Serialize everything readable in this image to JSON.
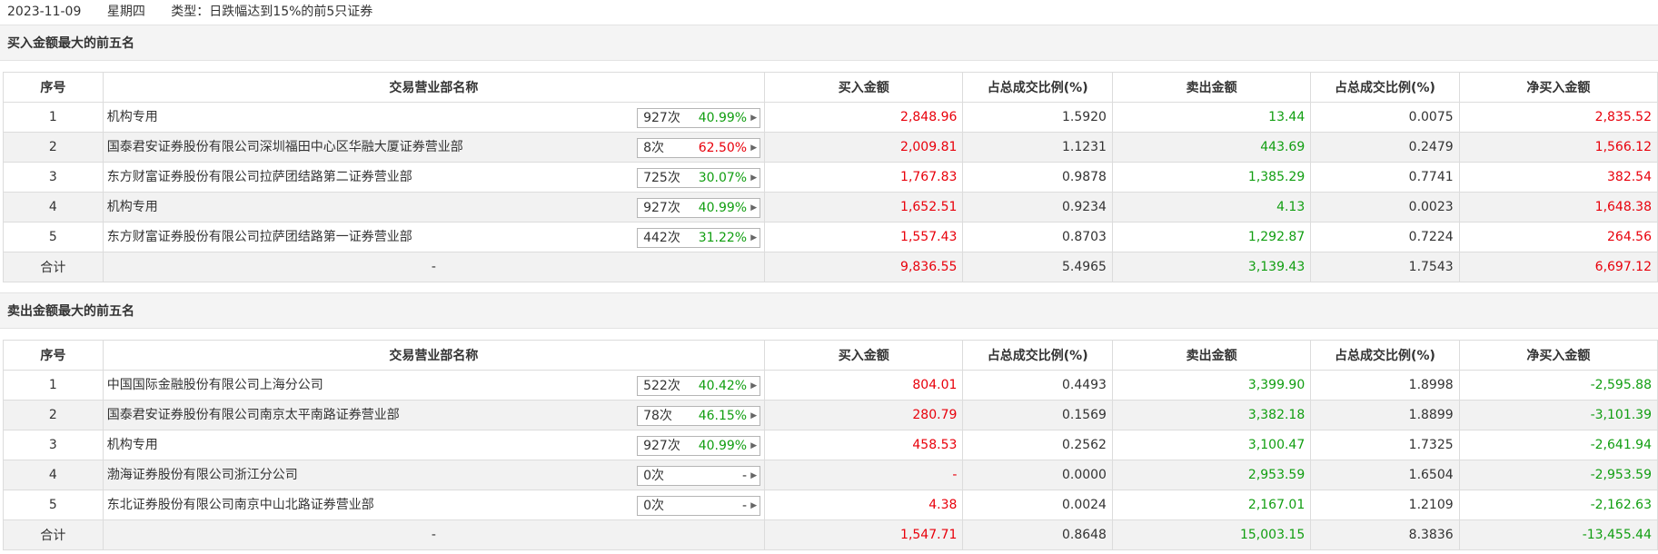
{
  "header": {
    "date": "2023-11-09",
    "weekday": "星期四",
    "type_label": "类型：日跌幅达到15%的前5只证券"
  },
  "columns": [
    "序号",
    "交易营业部名称",
    "买入金额",
    "占总成交比例(%)",
    "卖出金额",
    "占总成交比例(%)",
    "净买入金额"
  ],
  "buy_section": {
    "title": "买入金额最大的前五名",
    "rows": [
      {
        "rank": "1",
        "name": "机构专用",
        "count": "927次",
        "rate": "40.99%",
        "rate_color": "green",
        "buy": "2,848.96",
        "buy_pct": "1.5920",
        "sell": "13.44",
        "sell_pct": "0.0075",
        "net": "2,835.52",
        "net_color": "red"
      },
      {
        "rank": "2",
        "name": "国泰君安证券股份有限公司深圳福田中心区华融大厦证券营业部",
        "count": "8次",
        "rate": "62.50%",
        "rate_color": "red",
        "buy": "2,009.81",
        "buy_pct": "1.1231",
        "sell": "443.69",
        "sell_pct": "0.2479",
        "net": "1,566.12",
        "net_color": "red"
      },
      {
        "rank": "3",
        "name": "东方财富证券股份有限公司拉萨团结路第二证券营业部",
        "count": "725次",
        "rate": "30.07%",
        "rate_color": "green",
        "buy": "1,767.83",
        "buy_pct": "0.9878",
        "sell": "1,385.29",
        "sell_pct": "0.7741",
        "net": "382.54",
        "net_color": "red"
      },
      {
        "rank": "4",
        "name": "机构专用",
        "count": "927次",
        "rate": "40.99%",
        "rate_color": "green",
        "buy": "1,652.51",
        "buy_pct": "0.9234",
        "sell": "4.13",
        "sell_pct": "0.0023",
        "net": "1,648.38",
        "net_color": "red"
      },
      {
        "rank": "5",
        "name": "东方财富证券股份有限公司拉萨团结路第一证券营业部",
        "count": "442次",
        "rate": "31.22%",
        "rate_color": "green",
        "buy": "1,557.43",
        "buy_pct": "0.8703",
        "sell": "1,292.87",
        "sell_pct": "0.7224",
        "net": "264.56",
        "net_color": "red"
      }
    ],
    "total": {
      "label": "合计",
      "name": "-",
      "buy": "9,836.55",
      "buy_pct": "5.4965",
      "sell": "3,139.43",
      "sell_pct": "1.7543",
      "net": "6,697.12",
      "net_color": "red"
    }
  },
  "sell_section": {
    "title": "卖出金额最大的前五名",
    "rows": [
      {
        "rank": "1",
        "name": "中国国际金融股份有限公司上海分公司",
        "count": "522次",
        "rate": "40.42%",
        "rate_color": "green",
        "buy": "804.01",
        "buy_pct": "0.4493",
        "sell": "3,399.90",
        "sell_pct": "1.8998",
        "net": "-2,595.88",
        "net_color": "green"
      },
      {
        "rank": "2",
        "name": "国泰君安证券股份有限公司南京太平南路证券营业部",
        "count": "78次",
        "rate": "46.15%",
        "rate_color": "green",
        "buy": "280.79",
        "buy_pct": "0.1569",
        "sell": "3,382.18",
        "sell_pct": "1.8899",
        "net": "-3,101.39",
        "net_color": "green"
      },
      {
        "rank": "3",
        "name": "机构专用",
        "count": "927次",
        "rate": "40.99%",
        "rate_color": "green",
        "buy": "458.53",
        "buy_pct": "0.2562",
        "sell": "3,100.47",
        "sell_pct": "1.7325",
        "net": "-2,641.94",
        "net_color": "green"
      },
      {
        "rank": "4",
        "name": "渤海证券股份有限公司浙江分公司",
        "count": "0次",
        "rate": "-",
        "rate_color": "gray",
        "buy": "-",
        "buy_pct": "0.0000",
        "sell": "2,953.59",
        "sell_pct": "1.6504",
        "net": "-2,953.59",
        "net_color": "green"
      },
      {
        "rank": "5",
        "name": "东北证券股份有限公司南京中山北路证券营业部",
        "count": "0次",
        "rate": "-",
        "rate_color": "gray",
        "buy": "4.38",
        "buy_pct": "0.0024",
        "sell": "2,167.01",
        "sell_pct": "1.2109",
        "net": "-2,162.63",
        "net_color": "green"
      }
    ],
    "total": {
      "label": "合计",
      "name": "-",
      "buy": "1,547.71",
      "buy_pct": "0.8648",
      "sell": "15,003.15",
      "sell_pct": "8.3836",
      "net": "-13,455.44",
      "net_color": "green"
    }
  },
  "colors": {
    "red": "#e8000b",
    "green": "#119e11",
    "alt_row_bg": "#f2f2f2",
    "section_bg": "#f4f4f4"
  },
  "icons": {
    "badge_arrow": "caret-right-icon"
  }
}
